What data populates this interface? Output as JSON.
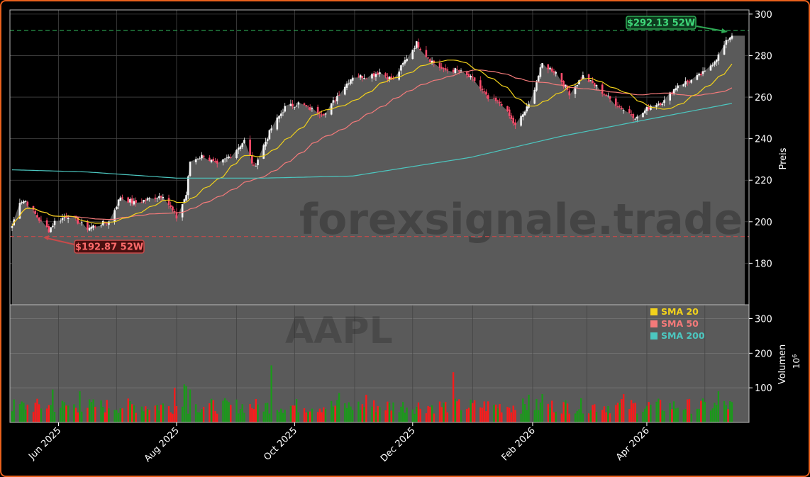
{
  "chart_data": [
    {
      "type": "candlestick",
      "ticker": "AAPL",
      "watermark": "forexsignale.trade",
      "ylabel": "Preis",
      "ylim": [
        160,
        302
      ],
      "yticks": [
        180,
        200,
        220,
        240,
        260,
        280,
        300
      ],
      "xticks": [
        "Jun 2025",
        "Aug 2025",
        "Oct 2025",
        "Dec 2025",
        "Feb 2026",
        "Apr 2026"
      ],
      "grid": true,
      "high_52w": {
        "label": "$292.13 52W",
        "value": 292.13
      },
      "low_52w": {
        "label": "$192.87 52W",
        "value": 192.87
      },
      "close_anchors": [
        [
          "2025-05-08",
          198
        ],
        [
          "2025-05-12",
          210
        ],
        [
          "2025-05-15",
          210
        ],
        [
          "2025-05-22",
          201
        ],
        [
          "2025-05-27",
          196
        ],
        [
          "2025-05-30",
          200
        ],
        [
          "2025-06-06",
          203
        ],
        [
          "2025-06-16",
          197
        ],
        [
          "2025-06-27",
          200
        ],
        [
          "2025-07-03",
          212
        ],
        [
          "2025-07-10",
          209
        ],
        [
          "2025-07-18",
          211
        ],
        [
          "2025-07-25",
          213
        ],
        [
          "2025-08-01",
          202
        ],
        [
          "2025-08-06",
          213
        ],
        [
          "2025-08-08",
          229
        ],
        [
          "2025-08-15",
          232
        ],
        [
          "2025-08-22",
          227
        ],
        [
          "2025-08-29",
          232
        ],
        [
          "2025-09-05",
          239
        ],
        [
          "2025-09-10",
          226
        ],
        [
          "2025-09-19",
          245
        ],
        [
          "2025-09-26",
          255
        ],
        [
          "2025-10-03",
          257
        ],
        [
          "2025-10-10",
          254
        ],
        [
          "2025-10-17",
          252
        ],
        [
          "2025-10-24",
          262
        ],
        [
          "2025-10-31",
          270
        ],
        [
          "2025-11-07",
          270
        ],
        [
          "2025-11-14",
          272
        ],
        [
          "2025-11-21",
          268
        ],
        [
          "2025-11-28",
          279
        ],
        [
          "2025-12-03",
          286
        ],
        [
          "2025-12-10",
          278
        ],
        [
          "2025-12-17",
          273
        ],
        [
          "2025-12-24",
          273
        ],
        [
          "2026-01-02",
          268
        ],
        [
          "2026-01-09",
          259
        ],
        [
          "2026-01-16",
          257
        ],
        [
          "2026-01-23",
          246
        ],
        [
          "2026-01-30",
          256
        ],
        [
          "2026-02-06",
          276
        ],
        [
          "2026-02-13",
          272
        ],
        [
          "2026-02-20",
          262
        ],
        [
          "2026-02-27",
          270
        ],
        [
          "2026-03-06",
          265
        ],
        [
          "2026-03-13",
          259
        ],
        [
          "2026-03-20",
          254
        ],
        [
          "2026-03-27",
          250
        ],
        [
          "2026-04-03",
          256
        ],
        [
          "2026-04-10",
          258
        ],
        [
          "2026-04-17",
          266
        ],
        [
          "2026-04-24",
          268
        ],
        [
          "2026-05-01",
          272
        ],
        [
          "2026-05-08",
          280
        ],
        [
          "2026-05-13",
          288
        ],
        [
          "2026-05-15",
          290
        ]
      ],
      "sma200_anchors": [
        [
          "2025-05-08",
          225
        ],
        [
          "2025-06-15",
          224
        ],
        [
          "2025-08-01",
          221
        ],
        [
          "2025-09-15",
          221
        ],
        [
          "2025-10-31",
          222
        ],
        [
          "2025-12-31",
          231
        ],
        [
          "2026-02-15",
          241
        ],
        [
          "2026-03-31",
          249
        ],
        [
          "2026-05-15",
          257
        ]
      ]
    },
    {
      "type": "bar",
      "ylabel": "Volumen",
      "yunit": "10^6",
      "yticks": [
        100,
        200,
        300
      ],
      "ylim": [
        0,
        340
      ],
      "colors": {
        "up": "#1a9a1a",
        "down": "#ff1a1a"
      },
      "spikes": [
        [
          "2025-05-29",
          95
        ],
        [
          "2025-06-12",
          90
        ],
        [
          "2025-07-31",
          100
        ],
        [
          "2025-08-05",
          110
        ],
        [
          "2025-08-06",
          105
        ],
        [
          "2025-08-08",
          95
        ],
        [
          "2025-09-19",
          165
        ],
        [
          "2025-10-24",
          85
        ],
        [
          "2025-11-07",
          80
        ],
        [
          "2025-12-22",
          145
        ],
        [
          "2026-01-30",
          80
        ],
        [
          "2026-02-06",
          82
        ],
        [
          "2026-03-20",
          82
        ],
        [
          "2026-05-08",
          90
        ]
      ]
    }
  ],
  "legend": [
    {
      "label": "SMA 20",
      "color": "#f2d21b"
    },
    {
      "label": "SMA 50",
      "color": "#f47a7a"
    },
    {
      "label": "SMA 200",
      "color": "#4cc7c0"
    }
  ],
  "colors": {
    "candle_up": "#f5f5f5",
    "candle_down": "#ff4d6d",
    "area": "#5a5a5a",
    "high_line": "#2eaa55",
    "low_line": "#c84a4a",
    "frame": "#e8601c"
  }
}
